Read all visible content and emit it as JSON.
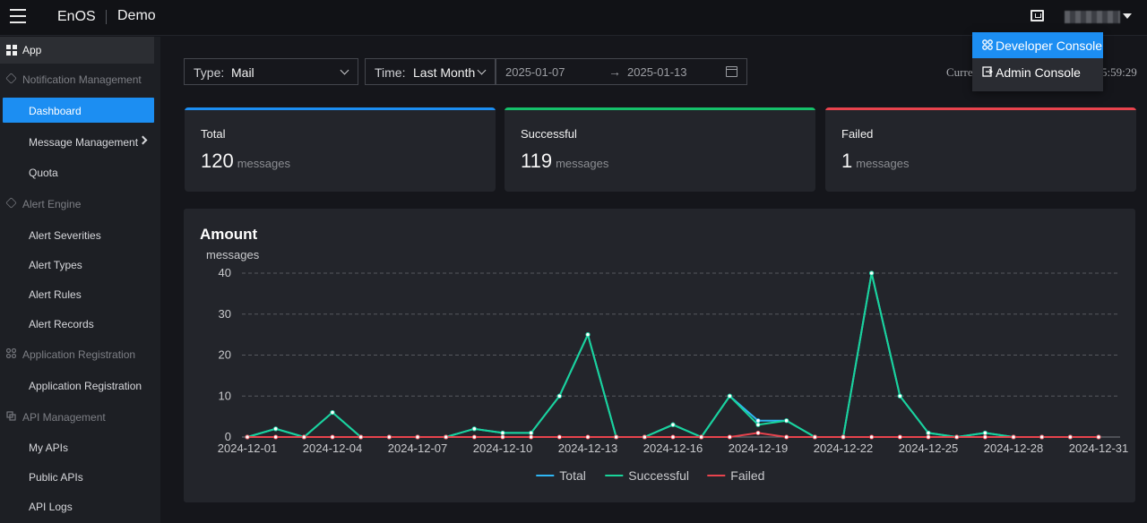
{
  "topbar": {
    "brand": "EnOS",
    "app_name": "Demo",
    "menu_icon": "hamburger-menu-icon",
    "monitor_icon": "developer-console-icon"
  },
  "user_menu": {
    "items": [
      {
        "label": "Developer Console",
        "icon": "developer-console-icon",
        "active": true
      },
      {
        "label": "Admin Console",
        "icon": "admin-console-icon",
        "active": false
      }
    ]
  },
  "sidebar": {
    "app_label": "App",
    "sections": [
      {
        "label": "Notification Management",
        "items": [
          "Dashboard",
          "Message Management",
          "Quota"
        ]
      },
      {
        "label": "Alert Engine",
        "items": [
          "Alert Severities",
          "Alert Types",
          "Alert Rules",
          "Alert Records"
        ]
      },
      {
        "label": "Application Registration",
        "items": [
          "Application Registration"
        ]
      },
      {
        "label": "API Management",
        "items": [
          "My APIs",
          "Public APIs",
          "API Logs"
        ]
      }
    ],
    "active_item": "Dashboard"
  },
  "filters": {
    "type_key": "Type:",
    "type_value": "Mail",
    "time_key": "Time:",
    "time_value": "Last Month",
    "date_start": "2025-01-07",
    "date_end": "2025-01-13",
    "arrow": "→",
    "current_prefix": "Curre",
    "current_time_suffix": "5:59:29"
  },
  "stats": [
    {
      "title": "Total",
      "value": "120",
      "unit": "messages",
      "color": "#1c8ef2"
    },
    {
      "title": "Successful",
      "value": "119",
      "unit": "messages",
      "color": "#15c06a"
    },
    {
      "title": "Failed",
      "value": "1",
      "unit": "messages",
      "color": "#e8434d"
    }
  ],
  "chart_title": "Amount",
  "chart_data": {
    "type": "line",
    "title": "Amount",
    "ylabel": "messages",
    "ylim": [
      0,
      40
    ],
    "yticks": [
      0,
      10,
      20,
      30,
      40
    ],
    "x": [
      "2024-12-01",
      "2024-12-02",
      "2024-12-03",
      "2024-12-04",
      "2024-12-05",
      "2024-12-06",
      "2024-12-07",
      "2024-12-08",
      "2024-12-09",
      "2024-12-10",
      "2024-12-11",
      "2024-12-12",
      "2024-12-13",
      "2024-12-14",
      "2024-12-15",
      "2024-12-16",
      "2024-12-17",
      "2024-12-18",
      "2024-12-19",
      "2024-12-20",
      "2024-12-21",
      "2024-12-22",
      "2024-12-23",
      "2024-12-24",
      "2024-12-25",
      "2024-12-26",
      "2024-12-27",
      "2024-12-28",
      "2024-12-29",
      "2024-12-30",
      "2024-12-31"
    ],
    "xtick_labels": [
      "2024-12-01",
      "2024-12-04",
      "2024-12-07",
      "2024-12-10",
      "2024-12-13",
      "2024-12-16",
      "2024-12-19",
      "2024-12-22",
      "2024-12-25",
      "2024-12-28",
      "2024-12-31"
    ],
    "series": [
      {
        "name": "Total",
        "color": "#2fb7f5",
        "values": [
          0,
          2,
          0,
          6,
          0,
          0,
          0,
          0,
          2,
          1,
          1,
          10,
          25,
          0,
          0,
          3,
          0,
          10,
          4,
          4,
          0,
          0,
          40,
          10,
          1,
          0,
          1,
          0,
          0,
          0,
          0
        ]
      },
      {
        "name": "Successful",
        "color": "#19d49a",
        "values": [
          0,
          2,
          0,
          6,
          0,
          0,
          0,
          0,
          2,
          1,
          1,
          10,
          25,
          0,
          0,
          3,
          0,
          10,
          3,
          4,
          0,
          0,
          40,
          10,
          1,
          0,
          1,
          0,
          0,
          0,
          0
        ]
      },
      {
        "name": "Failed",
        "color": "#e8434d",
        "values": [
          0,
          0,
          0,
          0,
          0,
          0,
          0,
          0,
          0,
          0,
          0,
          0,
          0,
          0,
          0,
          0,
          0,
          0,
          1,
          0,
          0,
          0,
          0,
          0,
          0,
          0,
          0,
          0,
          0,
          0,
          0
        ]
      }
    ]
  }
}
